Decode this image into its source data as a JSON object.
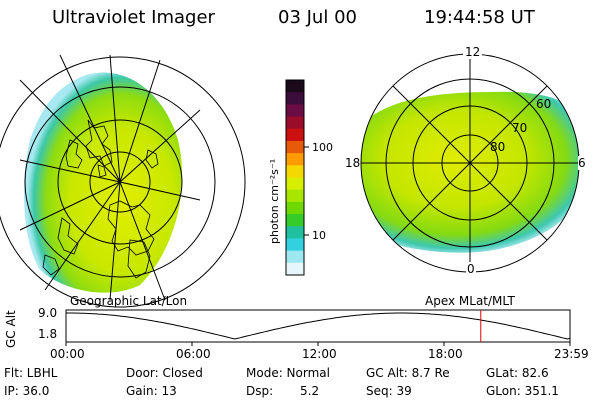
{
  "header": {
    "instrument": "Ultraviolet Imager",
    "date": "03 Jul 00",
    "time": "19:44:58 UT"
  },
  "colorbar": {
    "unit_label": "photon cm⁻²s⁻¹",
    "ticks": [
      "100",
      "10"
    ],
    "colors": [
      "#1a0a1a",
      "#3a0d3a",
      "#6a0d45",
      "#9a0d2a",
      "#cc1010",
      "#e65a0a",
      "#ff9a00",
      "#f5d800",
      "#d6ef00",
      "#a8e600",
      "#6fd800",
      "#35cc2a",
      "#1fc0a0",
      "#33d0e0",
      "#9de8f0",
      "#e6f6fa"
    ]
  },
  "left_panel": {
    "label": "Geographic Lat/Lon"
  },
  "right_panel": {
    "label": "Apex MLat/MLT",
    "mlt_labels": [
      "12",
      "18",
      "6",
      "0"
    ],
    "lat_labels": [
      "60",
      "70",
      "80"
    ]
  },
  "altitude_plot": {
    "axis_label": "GC Alt",
    "y_ticks": [
      "9.0",
      "1.8"
    ],
    "x_ticks": [
      "00:00",
      "06:00",
      "12:00",
      "18:00",
      "23:59"
    ],
    "current_time_marker_frac": 0.823
  },
  "status": {
    "row1": {
      "flt": "Flt: LBHL",
      "door": "Door: Closed",
      "mode": "Mode: Normal",
      "gcalt": "GC Alt: 8.7 Re",
      "glat": "GLat: 82.6"
    },
    "row2": {
      "ip": "IP: 36.0",
      "gain": "Gain: 13",
      "dsp_label": "Dsp:",
      "dsp_value": "5.2",
      "seq": "Seq: 39",
      "glon": "GLon: 351.1"
    }
  }
}
